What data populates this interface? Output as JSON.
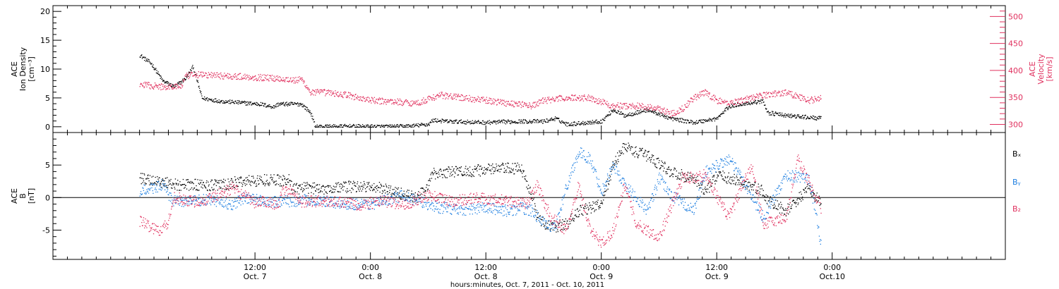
{
  "chart_data": [
    {
      "type": "scatter",
      "left_ylabel": [
        "ACE",
        "Ion Density",
        "[cm⁻³]"
      ],
      "right_ylabel": [
        "ACE",
        "Velocity",
        "[km/s]"
      ],
      "ylim_left": [
        -1,
        21
      ],
      "ylim_right": [
        285,
        520
      ],
      "yticks_left": [
        0,
        5,
        10,
        15,
        20
      ],
      "yticks_right": [
        300,
        350,
        400,
        450,
        500
      ],
      "colors": {
        "density": "#000000",
        "velocity": "#e0305e"
      },
      "series": [
        {
          "axis": "left",
          "color": "#000000",
          "keypoints": [
            [
              0.0,
              12.5
            ],
            [
              0.05,
              11.0
            ],
            [
              0.1,
              8.0
            ],
            [
              0.15,
              7.0
            ],
            [
              0.2,
              8.5
            ],
            [
              0.23,
              10.5
            ],
            [
              0.27,
              5.0
            ],
            [
              0.35,
              4.5
            ],
            [
              0.45,
              4.2
            ],
            [
              0.52,
              4.0
            ],
            [
              0.58,
              3.5
            ],
            [
              0.6,
              4.0
            ],
            [
              0.7,
              4.0
            ],
            [
              0.74,
              2.5
            ],
            [
              0.76,
              0.1
            ],
            [
              0.8,
              0.1
            ],
            [
              0.9,
              0.15
            ],
            [
              1.0,
              0.1
            ],
            [
              1.1,
              0.1
            ],
            [
              1.18,
              0.2
            ],
            [
              1.25,
              0.5
            ],
            [
              1.27,
              1.2
            ],
            [
              1.33,
              1.0
            ],
            [
              1.5,
              0.8
            ],
            [
              1.65,
              1.0
            ],
            [
              1.75,
              1.0
            ],
            [
              1.8,
              1.5
            ],
            [
              1.85,
              0.5
            ],
            [
              2.0,
              1.0
            ],
            [
              2.05,
              3.0
            ],
            [
              2.1,
              2.0
            ],
            [
              2.2,
              3.0
            ],
            [
              2.3,
              1.5
            ],
            [
              2.4,
              0.8
            ],
            [
              2.5,
              1.5
            ],
            [
              2.55,
              3.5
            ],
            [
              2.6,
              4.0
            ],
            [
              2.7,
              4.5
            ],
            [
              2.72,
              2.5
            ],
            [
              2.8,
              2.0
            ],
            [
              2.95,
              1.5
            ]
          ]
        },
        {
          "axis": "right",
          "color": "#e0305e",
          "keypoints": [
            [
              0.0,
              375
            ],
            [
              0.1,
              370
            ],
            [
              0.18,
              372
            ],
            [
              0.2,
              390
            ],
            [
              0.25,
              393
            ],
            [
              0.4,
              390
            ],
            [
              0.5,
              388
            ],
            [
              0.6,
              386
            ],
            [
              0.68,
              382
            ],
            [
              0.7,
              385
            ],
            [
              0.74,
              360
            ],
            [
              0.8,
              360
            ],
            [
              0.9,
              355
            ],
            [
              1.0,
              345
            ],
            [
              1.1,
              343
            ],
            [
              1.2,
              340
            ],
            [
              1.3,
              355
            ],
            [
              1.4,
              350
            ],
            [
              1.5,
              345
            ],
            [
              1.6,
              340
            ],
            [
              1.65,
              338
            ],
            [
              1.7,
              335
            ],
            [
              1.75,
              345
            ],
            [
              1.85,
              350
            ],
            [
              1.95,
              350
            ],
            [
              2.05,
              335
            ],
            [
              2.15,
              335
            ],
            [
              2.25,
              330
            ],
            [
              2.3,
              320
            ],
            [
              2.35,
              330
            ],
            [
              2.4,
              350
            ],
            [
              2.45,
              360
            ],
            [
              2.5,
              345
            ],
            [
              2.55,
              340
            ],
            [
              2.6,
              345
            ],
            [
              2.7,
              355
            ],
            [
              2.8,
              360
            ],
            [
              2.9,
              345
            ],
            [
              2.95,
              350
            ]
          ]
        }
      ]
    },
    {
      "type": "scatter",
      "left_ylabel": [
        "ACE",
        "B",
        "[nT]"
      ],
      "ylim": [
        -9.5,
        10
      ],
      "yticks": [
        -5,
        0,
        5
      ],
      "zero_line": true,
      "legend": [
        "Bₓ",
        "Bᵧ",
        "B₂"
      ],
      "legend_placement": "right",
      "colors": {
        "Bx": "#000000",
        "By": "#1f7fe0",
        "Bz": "#e0305e"
      },
      "series": [
        {
          "name": "Bₓ",
          "color": "#000000",
          "keypoints": [
            [
              0.0,
              3.0
            ],
            [
              0.1,
              2.5
            ],
            [
              0.17,
              2.0
            ],
            [
              0.2,
              2.0
            ],
            [
              0.3,
              2.0
            ],
            [
              0.38,
              2.0
            ],
            [
              0.42,
              2.5
            ],
            [
              0.55,
              2.8
            ],
            [
              0.65,
              2.7
            ],
            [
              0.66,
              1.5
            ],
            [
              0.8,
              1.5
            ],
            [
              0.95,
              1.8
            ],
            [
              1.05,
              1.5
            ],
            [
              1.15,
              0.5
            ],
            [
              1.2,
              0.0
            ],
            [
              1.25,
              2.0
            ],
            [
              1.27,
              3.8
            ],
            [
              1.35,
              4.0
            ],
            [
              1.45,
              4.2
            ],
            [
              1.55,
              4.5
            ],
            [
              1.65,
              4.5
            ],
            [
              1.7,
              0.5
            ],
            [
              1.72,
              -3.0
            ],
            [
              1.78,
              -4.5
            ],
            [
              1.85,
              -4.0
            ],
            [
              1.9,
              -2.0
            ],
            [
              2.0,
              -1.0
            ],
            [
              2.05,
              5.0
            ],
            [
              2.1,
              8.0
            ],
            [
              2.15,
              7.0
            ],
            [
              2.2,
              6.5
            ],
            [
              2.3,
              4.0
            ],
            [
              2.4,
              3.0
            ],
            [
              2.45,
              1.0
            ],
            [
              2.5,
              3.5
            ],
            [
              2.6,
              2.5
            ],
            [
              2.7,
              1.0
            ],
            [
              2.72,
              -0.5
            ],
            [
              2.8,
              -2.0
            ],
            [
              2.9,
              1.5
            ],
            [
              2.95,
              -1.0
            ]
          ]
        },
        {
          "name": "Bᵧ",
          "color": "#1f7fe0",
          "keypoints": [
            [
              0.0,
              1.0
            ],
            [
              0.05,
              1.5
            ],
            [
              0.1,
              2.0
            ],
            [
              0.14,
              -0.5
            ],
            [
              0.2,
              -0.5
            ],
            [
              0.3,
              -0.3
            ],
            [
              0.4,
              -1.0
            ],
            [
              0.45,
              0.0
            ],
            [
              0.55,
              -0.5
            ],
            [
              0.65,
              -0.5
            ],
            [
              0.75,
              -0.3
            ],
            [
              0.85,
              -0.8
            ],
            [
              1.0,
              -1.0
            ],
            [
              1.05,
              -0.5
            ],
            [
              1.15,
              0.5
            ],
            [
              1.2,
              -0.5
            ],
            [
              1.3,
              -1.5
            ],
            [
              1.4,
              -1.8
            ],
            [
              1.5,
              -1.5
            ],
            [
              1.6,
              -2.0
            ],
            [
              1.65,
              -1.5
            ],
            [
              1.7,
              -2.0
            ],
            [
              1.75,
              -4.0
            ],
            [
              1.8,
              -4.5
            ],
            [
              1.85,
              2.0
            ],
            [
              1.9,
              7.0
            ],
            [
              1.95,
              6.0
            ],
            [
              2.0,
              1.0
            ],
            [
              2.05,
              5.0
            ],
            [
              2.1,
              2.0
            ],
            [
              2.2,
              -2.0
            ],
            [
              2.25,
              3.0
            ],
            [
              2.3,
              0.5
            ],
            [
              2.4,
              -2.0
            ],
            [
              2.45,
              4.0
            ],
            [
              2.55,
              6.0
            ],
            [
              2.6,
              3.5
            ],
            [
              2.7,
              -3.0
            ],
            [
              2.8,
              3.5
            ],
            [
              2.9,
              3.0
            ],
            [
              2.95,
              -7.0
            ]
          ]
        },
        {
          "name": "B₂",
          "color": "#e0305e",
          "keypoints": [
            [
              0.0,
              -3.5
            ],
            [
              0.05,
              -4.5
            ],
            [
              0.08,
              -5.0
            ],
            [
              0.12,
              -4.0
            ],
            [
              0.15,
              0.2
            ],
            [
              0.2,
              -0.5
            ],
            [
              0.28,
              -0.5
            ],
            [
              0.4,
              1.5
            ],
            [
              0.5,
              -0.8
            ],
            [
              0.55,
              -0.5
            ],
            [
              0.6,
              -1.0
            ],
            [
              0.62,
              1.0
            ],
            [
              0.66,
              1.0
            ],
            [
              0.7,
              -0.5
            ],
            [
              0.8,
              -0.5
            ],
            [
              0.95,
              -1.0
            ],
            [
              1.05,
              -0.5
            ],
            [
              1.15,
              -1.0
            ],
            [
              1.25,
              0.5
            ],
            [
              1.35,
              -0.5
            ],
            [
              1.45,
              0.0
            ],
            [
              1.6,
              -0.5
            ],
            [
              1.68,
              -0.8
            ],
            [
              1.72,
              2.0
            ],
            [
              1.78,
              -3.0
            ],
            [
              1.85,
              -5.0
            ],
            [
              1.9,
              2.0
            ],
            [
              1.95,
              -5.0
            ],
            [
              2.0,
              -7.0
            ],
            [
              2.05,
              -5.0
            ],
            [
              2.1,
              2.0
            ],
            [
              2.15,
              -4.0
            ],
            [
              2.2,
              -5.0
            ],
            [
              2.25,
              -6.0
            ],
            [
              2.35,
              3.0
            ],
            [
              2.45,
              3.5
            ],
            [
              2.55,
              -3.0
            ],
            [
              2.65,
              5.0
            ],
            [
              2.7,
              -4.0
            ],
            [
              2.8,
              -3.0
            ],
            [
              2.85,
              6.0
            ],
            [
              2.95,
              -1.5
            ]
          ]
        }
      ]
    }
  ],
  "xaxis": {
    "xlim": [
      -0.375,
      3.75
    ],
    "major_ticks": [
      {
        "x": 0.5,
        "time": "12:00",
        "date": "Oct. 7"
      },
      {
        "x": 1.0,
        "time": "0:00",
        "date": "Oct. 8"
      },
      {
        "x": 1.5,
        "time": "12:00",
        "date": "Oct. 8"
      },
      {
        "x": 2.0,
        "time": "0:00",
        "date": "Oct. 9"
      },
      {
        "x": 2.5,
        "time": "12:00",
        "date": "Oct. 9"
      },
      {
        "x": 3.0,
        "time": "0:00",
        "date": "Oct.10"
      }
    ],
    "minor_tick_step": 0.0625,
    "label": "hours:minutes, Oct.  7, 2011 - Oct. 10, 2011"
  }
}
